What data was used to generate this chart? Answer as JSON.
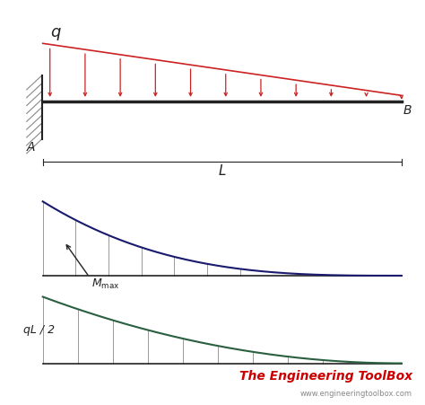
{
  "bg_color": "#ffffff",
  "beam_color": "#222222",
  "load_color": "#cc2222",
  "moment_color": "#1a1a6e",
  "shear_color": "#2a6040",
  "hatch_color": "#888888",
  "vline_color": "#999999",
  "label_A": "A",
  "label_B": "B",
  "label_q": "q",
  "label_L": "L",
  "label_qL2": "qL / 2",
  "title_text": "The Engineering ToolBox",
  "website_text": "www.engineeringtoolbox.com",
  "title_color": "#cc0000",
  "website_color": "#888888",
  "num_arrows": 11,
  "num_vlines_moment": 7,
  "num_vlines_shear": 9
}
